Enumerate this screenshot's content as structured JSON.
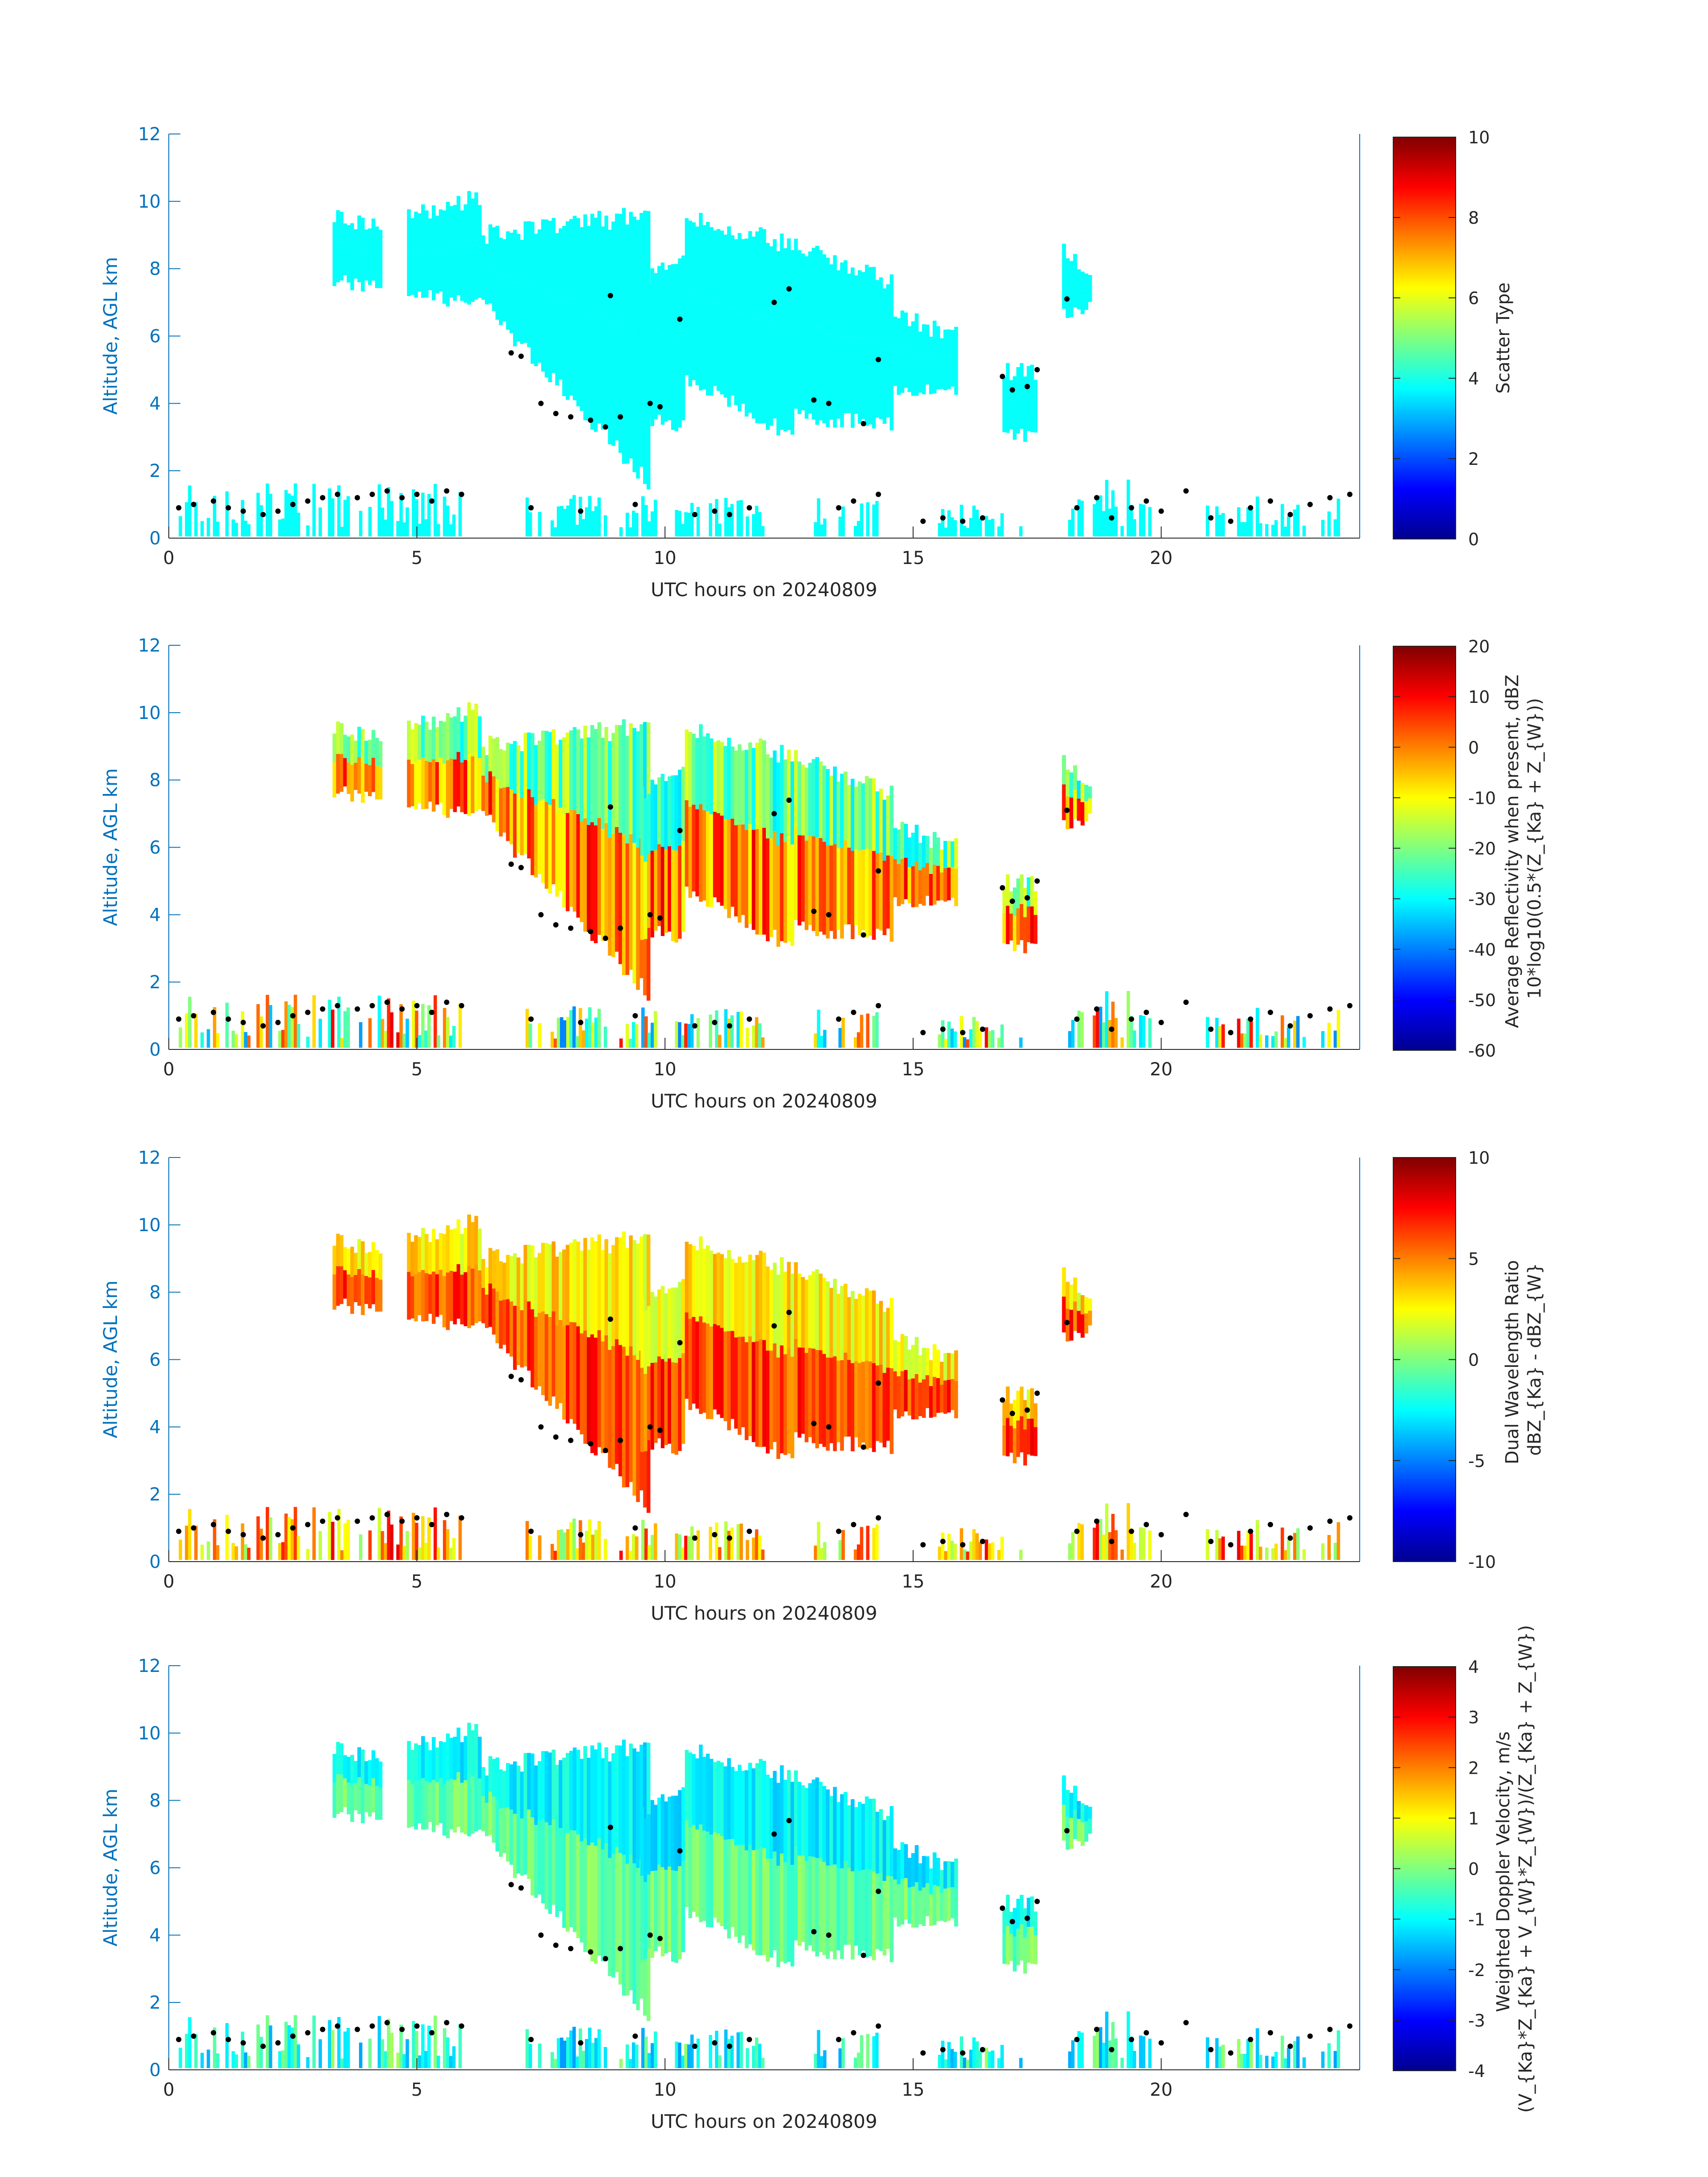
{
  "figure": {
    "date_label": "UTC hours on 20240809",
    "axis_color": "#0072BD",
    "tick_color": "#262626"
  },
  "chart_data": [
    {
      "type": "heatmap",
      "title": "",
      "xlabel": "UTC hours on 20240809",
      "ylabel": "Altitude, AGL km",
      "xlim": [
        0,
        24
      ],
      "ylim": [
        0,
        12
      ],
      "x_ticks": [
        0,
        5,
        10,
        15,
        20
      ],
      "y_ticks": [
        0,
        2,
        4,
        6,
        8,
        10,
        12
      ],
      "colormap": "jet",
      "colorbar": {
        "label_lines": [
          "Scatter Type"
        ],
        "clim": [
          0,
          10
        ],
        "ticks": [
          0,
          2,
          4,
          6,
          8,
          10
        ]
      },
      "field_value": 3.8
    },
    {
      "type": "heatmap",
      "title": "",
      "xlabel": "UTC hours on 20240809",
      "ylabel": "Altitude, AGL km",
      "xlim": [
        0,
        24
      ],
      "ylim": [
        0,
        12
      ],
      "x_ticks": [
        0,
        5,
        10,
        15,
        20
      ],
      "y_ticks": [
        0,
        2,
        4,
        6,
        8,
        10,
        12
      ],
      "colormap": "jet",
      "colorbar": {
        "label_lines": [
          "Average Reflectivity when present, dBZ",
          "10*log10(0.5*(Z_{Ka} + Z_{W}))"
        ],
        "clim": [
          -60,
          20
        ],
        "ticks": [
          -60,
          -50,
          -40,
          -30,
          -20,
          -10,
          0,
          10,
          20
        ]
      },
      "value_range": [
        -40,
        12
      ]
    },
    {
      "type": "heatmap",
      "title": "",
      "xlabel": "UTC hours on 20240809",
      "ylabel": "Altitude, AGL km",
      "xlim": [
        0,
        24
      ],
      "ylim": [
        0,
        12
      ],
      "x_ticks": [
        0,
        5,
        10,
        15,
        20
      ],
      "y_ticks": [
        0,
        2,
        4,
        6,
        8,
        10,
        12
      ],
      "colormap": "jet",
      "colorbar": {
        "label_lines": [
          "Dual Wavelength Ratio",
          "dBZ_{Ka} - dBZ_{W}"
        ],
        "clim": [
          -10,
          10
        ],
        "ticks": [
          -10,
          -5,
          0,
          5,
          10
        ]
      },
      "value_range": [
        0,
        8
      ]
    },
    {
      "type": "heatmap",
      "title": "",
      "xlabel": "UTC hours on 20240809",
      "ylabel": "Altitude, AGL km",
      "xlim": [
        0,
        24
      ],
      "ylim": [
        0,
        12
      ],
      "x_ticks": [
        0,
        5,
        10,
        15,
        20
      ],
      "y_ticks": [
        0,
        2,
        4,
        6,
        8,
        10,
        12
      ],
      "colormap": "jet",
      "colorbar": {
        "label_lines": [
          "Weighted Doppler Velocity, m/s",
          "(V_{Ka}*Z_{Ka} + V_{W}*Z_{W})/(Z_{Ka} + Z_{W})"
        ],
        "clim": [
          -4,
          4
        ],
        "ticks": [
          -4,
          -3,
          -2,
          -1,
          0,
          1,
          2,
          3,
          4
        ]
      },
      "value_range": [
        -1.8,
        0.3
      ]
    }
  ],
  "cloud_regions": [
    {
      "x": [
        3.3,
        4.3
      ],
      "ybot": [
        7.6,
        7.5
      ],
      "ytop": [
        9.6,
        9.3
      ]
    },
    {
      "x": [
        4.8,
        6.3
      ],
      "ybot": [
        7.2,
        7.0
      ],
      "ytop": [
        9.6,
        10.1
      ]
    },
    {
      "x": [
        6.3,
        9.7
      ],
      "ybot": [
        7.0,
        1.6
      ],
      "ytop": [
        9.0,
        9.6
      ]
    },
    {
      "x": [
        9.5,
        10.4
      ],
      "ybot": [
        3.5,
        3.3
      ],
      "ytop": [
        7.5,
        8.6
      ]
    },
    {
      "x": [
        10.4,
        12.6
      ],
      "ybot": [
        4.8,
        3.0
      ],
      "ytop": [
        9.5,
        8.7
      ]
    },
    {
      "x": [
        12.6,
        14.6
      ],
      "ybot": [
        3.6,
        3.4
      ],
      "ytop": [
        8.7,
        7.6
      ]
    },
    {
      "x": [
        14.6,
        15.9
      ],
      "ybot": [
        4.3,
        4.4
      ],
      "ytop": [
        6.6,
        6.0
      ]
    },
    {
      "x": [
        16.8,
        17.5
      ],
      "ybot": [
        3.0,
        3.1
      ],
      "ytop": [
        4.9,
        5.0
      ]
    },
    {
      "x": [
        18.0,
        18.6
      ],
      "ybot": [
        6.6,
        6.8
      ],
      "ytop": [
        8.6,
        8.0
      ]
    }
  ],
  "low_cloud_regions": [
    {
      "x": [
        0.2,
        5.9
      ],
      "ytop": 1.7
    },
    {
      "x": [
        7.0,
        9.9
      ],
      "ytop": 1.3
    },
    {
      "x": [
        10.2,
        12.0
      ],
      "ytop": 1.2
    },
    {
      "x": [
        13.0,
        14.3
      ],
      "ytop": 1.3
    },
    {
      "x": [
        15.5,
        17.2
      ],
      "ytop": 1.0
    },
    {
      "x": [
        18.0,
        19.8
      ],
      "ytop": 1.8
    },
    {
      "x": [
        20.9,
        23.6
      ],
      "ytop": 1.3
    }
  ],
  "markers": {
    "color": "#000000",
    "points": [
      [
        0.2,
        0.9
      ],
      [
        0.5,
        1.0
      ],
      [
        0.9,
        1.1
      ],
      [
        1.2,
        0.9
      ],
      [
        1.5,
        0.8
      ],
      [
        1.9,
        0.7
      ],
      [
        2.2,
        0.8
      ],
      [
        2.5,
        1.0
      ],
      [
        2.8,
        1.1
      ],
      [
        3.1,
        1.2
      ],
      [
        3.4,
        1.3
      ],
      [
        3.8,
        1.2
      ],
      [
        4.1,
        1.3
      ],
      [
        4.4,
        1.4
      ],
      [
        4.7,
        1.2
      ],
      [
        5.0,
        1.3
      ],
      [
        5.3,
        1.1
      ],
      [
        5.6,
        1.4
      ],
      [
        5.9,
        1.3
      ],
      [
        6.9,
        5.5
      ],
      [
        7.1,
        5.4
      ],
      [
        7.3,
        0.9
      ],
      [
        7.5,
        4.0
      ],
      [
        7.8,
        3.7
      ],
      [
        8.1,
        3.6
      ],
      [
        8.3,
        0.8
      ],
      [
        8.5,
        3.5
      ],
      [
        8.8,
        3.3
      ],
      [
        8.9,
        7.2
      ],
      [
        9.1,
        3.6
      ],
      [
        9.4,
        1.0
      ],
      [
        9.7,
        4.0
      ],
      [
        9.9,
        3.9
      ],
      [
        10.3,
        6.5
      ],
      [
        10.6,
        0.7
      ],
      [
        11.0,
        0.8
      ],
      [
        11.3,
        0.7
      ],
      [
        11.7,
        0.9
      ],
      [
        12.2,
        7.0
      ],
      [
        12.5,
        7.4
      ],
      [
        13.0,
        4.1
      ],
      [
        13.3,
        4.0
      ],
      [
        13.5,
        0.9
      ],
      [
        13.8,
        1.1
      ],
      [
        14.0,
        3.4
      ],
      [
        14.3,
        5.3
      ],
      [
        14.3,
        1.3
      ],
      [
        15.2,
        0.5
      ],
      [
        15.6,
        0.6
      ],
      [
        16.0,
        0.5
      ],
      [
        16.4,
        0.6
      ],
      [
        16.8,
        4.8
      ],
      [
        17.0,
        4.4
      ],
      [
        17.3,
        4.5
      ],
      [
        17.5,
        5.0
      ],
      [
        18.1,
        7.1
      ],
      [
        18.3,
        0.9
      ],
      [
        18.7,
        1.2
      ],
      [
        19.0,
        0.6
      ],
      [
        19.4,
        0.9
      ],
      [
        19.7,
        1.1
      ],
      [
        20.0,
        0.8
      ],
      [
        20.5,
        1.4
      ],
      [
        21.0,
        0.6
      ],
      [
        21.4,
        0.5
      ],
      [
        21.8,
        0.9
      ],
      [
        22.2,
        1.1
      ],
      [
        22.6,
        0.7
      ],
      [
        23.0,
        1.0
      ],
      [
        23.4,
        1.2
      ],
      [
        23.8,
        1.3
      ]
    ]
  }
}
